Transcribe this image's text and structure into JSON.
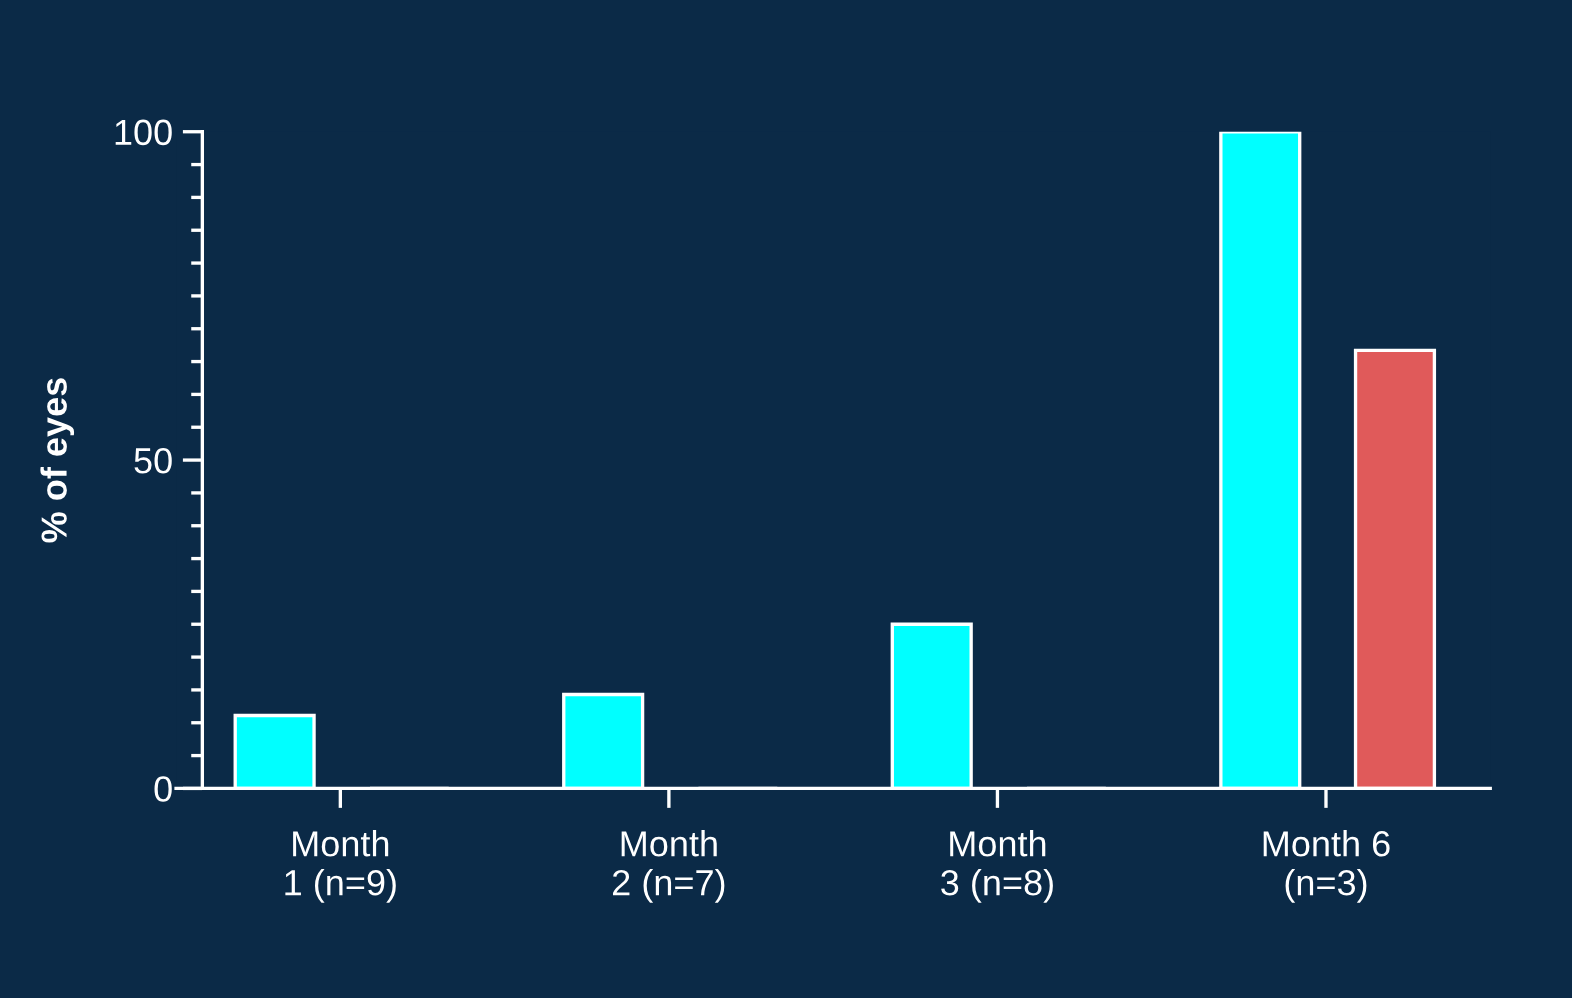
{
  "chart_data": {
    "type": "bar",
    "ylabel": "% of eyes",
    "categories": [
      "Month\n1 (n=9)",
      "Month\n2 (n=7)",
      "Month\n3 (n=8)",
      "Month 6\n(n=3)"
    ],
    "series": [
      {
        "color": "#00ffff",
        "values": [
          11.1,
          14.3,
          25,
          100
        ]
      },
      {
        "color": "#e05a5a",
        "values": [
          0,
          0,
          0,
          66.7
        ]
      }
    ],
    "ylim": [
      0,
      100
    ],
    "yticks": [
      0,
      50,
      100
    ]
  }
}
